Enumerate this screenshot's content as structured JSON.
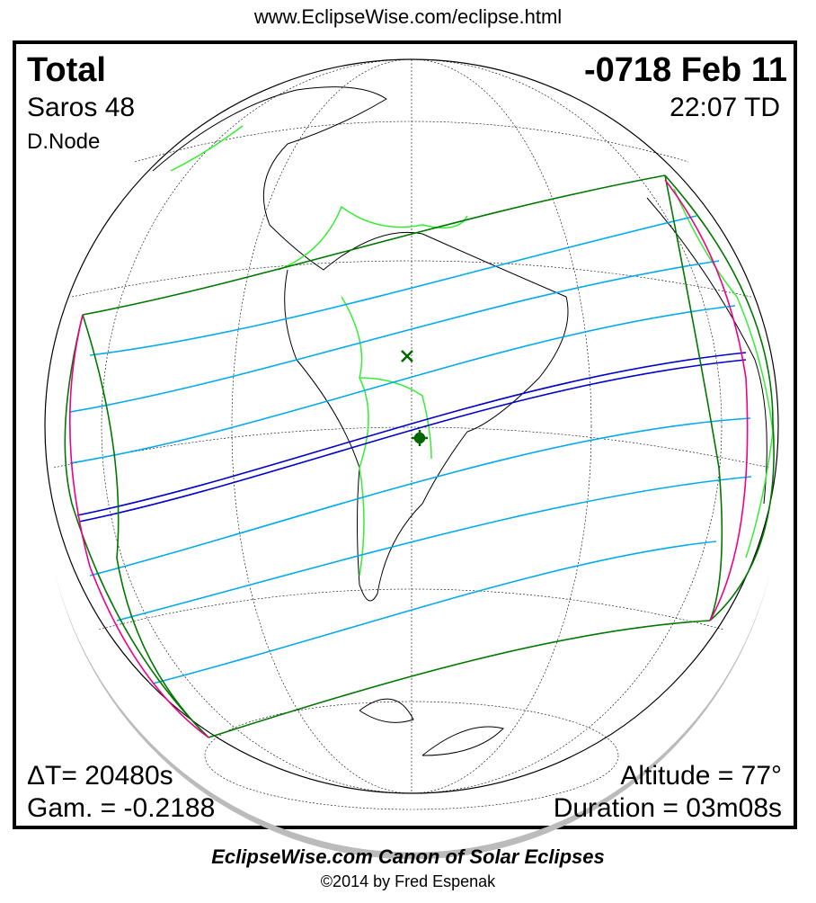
{
  "header": {
    "url": "www.EclipseWise.com/eclipse.html"
  },
  "eclipse": {
    "type": "Total",
    "date": "-0718 Feb 11",
    "saros": "Saros  48",
    "time": "22:07 TD",
    "node": "D.Node",
    "delta_t": "ΔT=  20480s",
    "gamma": "Gam. = -0.2188",
    "altitude": "Altitude = 77°",
    "duration": "Duration = 03m08s"
  },
  "footer": {
    "title": "EclipseWise.com Canon of Solar Eclipses",
    "copyright": "©2014 by Fred Espenak"
  },
  "colors": {
    "central_path": "#0000cc",
    "penumbral_lines": "#00aaee",
    "boundary": "#007700",
    "rise_set": "#ee0088",
    "borders": "#33ee33",
    "shadow": "#bbbbbb"
  }
}
